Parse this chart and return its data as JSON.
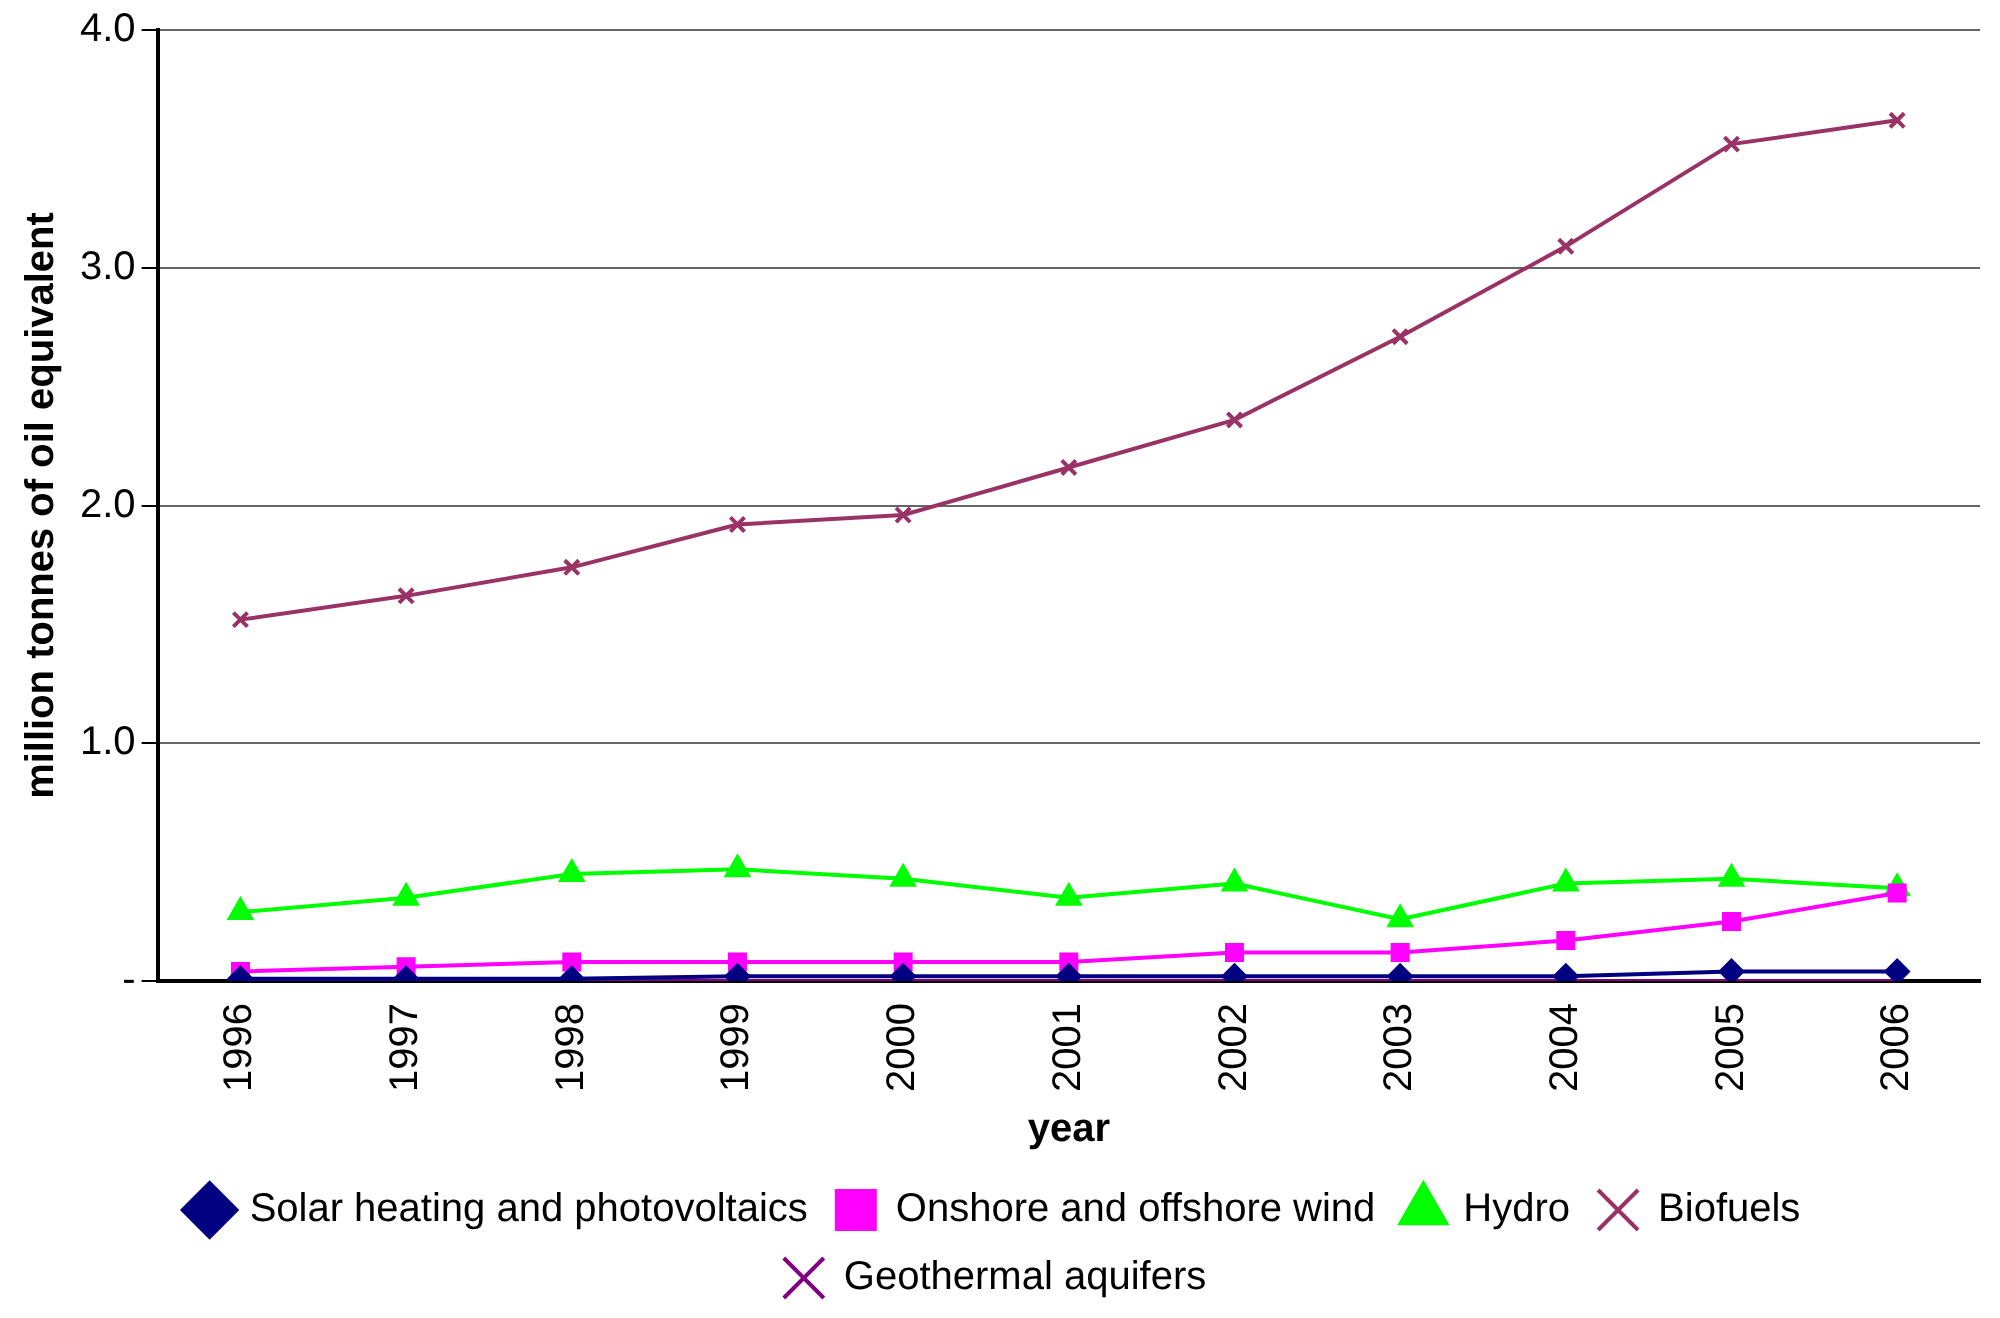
{
  "chart_data": {
    "type": "line",
    "xlabel": "year",
    "ylabel": "million tonnes of oil equivalent",
    "categories": [
      "1996",
      "1997",
      "1998",
      "1999",
      "2000",
      "2001",
      "2002",
      "2003",
      "2004",
      "2005",
      "2006"
    ],
    "ylim": [
      0,
      4
    ],
    "yticks": [
      {
        "value": 0,
        "label": "-"
      },
      {
        "value": 1,
        "label": "1.0"
      },
      {
        "value": 2,
        "label": "2.0"
      },
      {
        "value": 3,
        "label": "3.0"
      },
      {
        "value": 4,
        "label": "4.0"
      }
    ],
    "grid": "y",
    "legend": "bottom",
    "series": [
      {
        "name": "Solar heating and photovoltaics",
        "color": "#000080",
        "marker": "diamond",
        "values": [
          0.01,
          0.01,
          0.01,
          0.02,
          0.02,
          0.02,
          0.02,
          0.02,
          0.02,
          0.04,
          0.04
        ]
      },
      {
        "name": "Onshore and offshore wind",
        "color": "#ff00ff",
        "marker": "square",
        "values": [
          0.04,
          0.06,
          0.08,
          0.08,
          0.08,
          0.08,
          0.12,
          0.12,
          0.17,
          0.25,
          0.37
        ]
      },
      {
        "name": "Hydro",
        "color": "#00ff00",
        "marker": "triangle",
        "values": [
          0.29,
          0.35,
          0.45,
          0.47,
          0.43,
          0.35,
          0.41,
          0.26,
          0.41,
          0.43,
          0.39
        ]
      },
      {
        "name": "Biofuels",
        "color": "#993366",
        "marker": "cross",
        "values": [
          1.52,
          1.62,
          1.74,
          1.92,
          1.96,
          2.16,
          2.36,
          2.71,
          3.09,
          3.52,
          3.62
        ]
      },
      {
        "name": "Geothermal aquifers",
        "color": "#800080",
        "marker": "cross",
        "values": [
          0,
          0,
          0,
          0,
          0,
          0,
          0,
          0,
          0,
          0,
          0
        ]
      }
    ]
  }
}
